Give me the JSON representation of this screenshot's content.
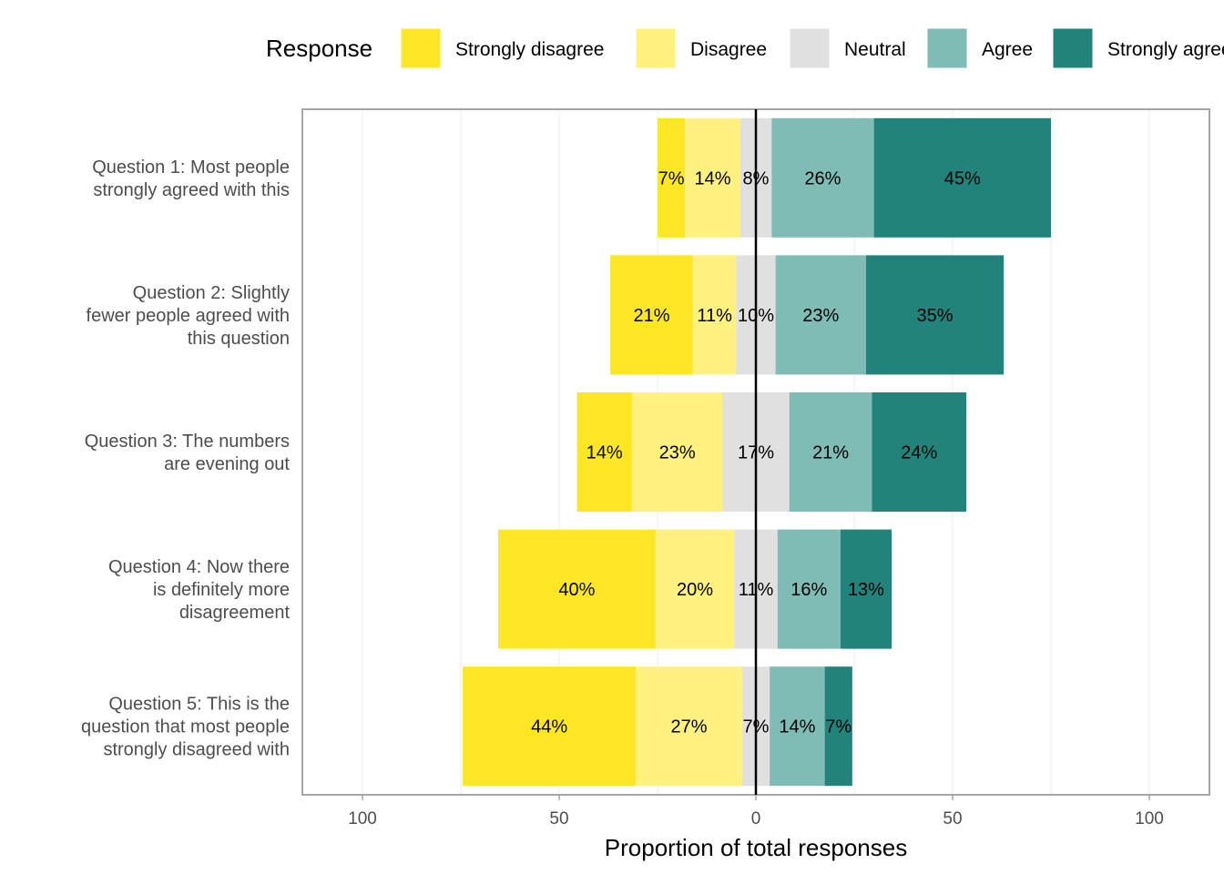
{
  "chart_data": {
    "type": "bar",
    "orientation": "horizontal",
    "stacking": "diverging",
    "legend_title": "Response",
    "legend_position": "top",
    "categories": [
      [
        "Question 1: Most people",
        "strongly agreed with this"
      ],
      [
        "Question 2: Slightly",
        "fewer people agreed with",
        "this question"
      ],
      [
        "Question 3: The numbers",
        "are evening out"
      ],
      [
        "Question 4: Now there",
        "is definitely more",
        "disagreement"
      ],
      [
        "Question 5: This is the",
        "question that most people",
        "strongly disagreed with"
      ]
    ],
    "series": [
      {
        "name": "Strongly disagree",
        "color": "#FDE725",
        "values": [
          7,
          21,
          14,
          40,
          44
        ]
      },
      {
        "name": "Disagree",
        "color": "#FFF17F",
        "values": [
          14,
          11,
          23,
          20,
          27
        ]
      },
      {
        "name": "Neutral",
        "color": "#E0E0E0",
        "values": [
          8,
          10,
          17,
          11,
          7
        ]
      },
      {
        "name": "Agree",
        "color": "#7FBCB5",
        "values": [
          26,
          23,
          21,
          16,
          14
        ]
      },
      {
        "name": "Strongly agree",
        "color": "#21837B",
        "values": [
          45,
          35,
          24,
          13,
          7
        ]
      }
    ],
    "data_labels": [
      [
        "7%",
        "14%",
        "8%",
        "26%",
        "45%"
      ],
      [
        "21%",
        "11%",
        "10%",
        "23%",
        "35%"
      ],
      [
        "14%",
        "23%",
        "17%",
        "21%",
        "24%"
      ],
      [
        "40%",
        "20%",
        "11%",
        "16%",
        "13%"
      ],
      [
        "44%",
        "27%",
        "7%",
        "14%",
        "7%"
      ]
    ],
    "xlabel": "Proportion of total responses",
    "ylabel": "",
    "x_ticks": [
      -100,
      -50,
      0,
      50,
      100
    ],
    "x_tick_labels": [
      "100",
      "50",
      "0",
      "50",
      "100"
    ],
    "xlim": [
      -115,
      115
    ],
    "grid": true
  }
}
